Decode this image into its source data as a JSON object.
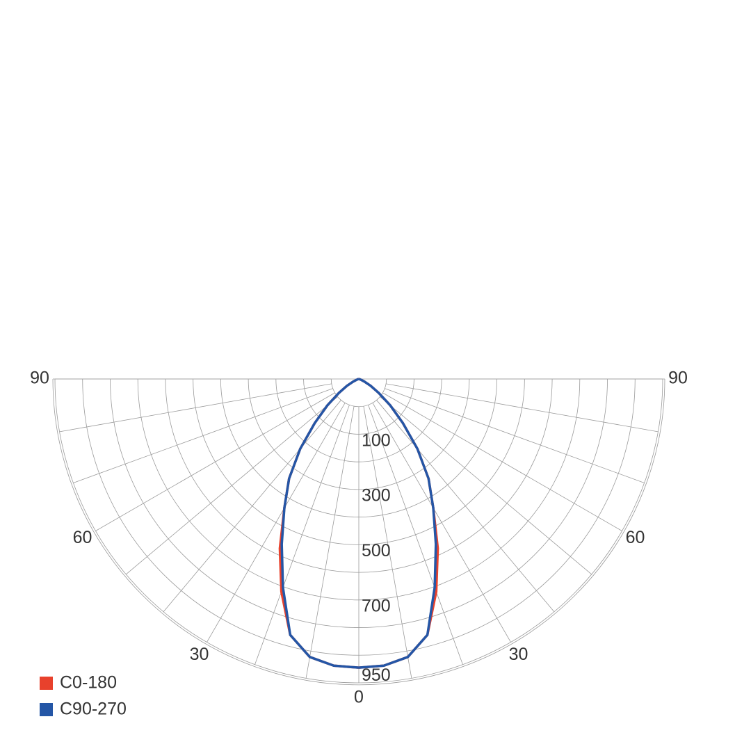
{
  "chart_data": {
    "type": "polar",
    "x": [
      0,
      5,
      10,
      15,
      20,
      25,
      30,
      35,
      40,
      45,
      50,
      55,
      60,
      65,
      70,
      75,
      80,
      85,
      90
    ],
    "symmetric": true,
    "series": [
      {
        "name": "C0-180",
        "color": "#e8412c",
        "values": [
          950,
          947,
          929,
          872,
          745,
          615,
          490,
          400,
          300,
          205,
          135,
          80,
          45,
          20,
          8,
          3,
          0,
          0,
          0
        ]
      },
      {
        "name": "C90-270",
        "color": "#2456a6",
        "values": [
          950,
          947,
          929,
          872,
          730,
          600,
          490,
          400,
          300,
          205,
          135,
          80,
          45,
          20,
          8,
          3,
          0,
          0,
          0
        ]
      }
    ],
    "rlim": [
      0,
      1000
    ],
    "rticks": [
      100,
      300,
      500,
      700,
      950
    ],
    "thetaticks": [
      {
        "value": -90,
        "label": "90"
      },
      {
        "value": -60,
        "label": "60"
      },
      {
        "value": -30,
        "label": "30"
      },
      0,
      30,
      60,
      {
        "value": 90,
        "label": "90"
      }
    ],
    "spoke_step": 10,
    "legend": "bottom-left"
  }
}
